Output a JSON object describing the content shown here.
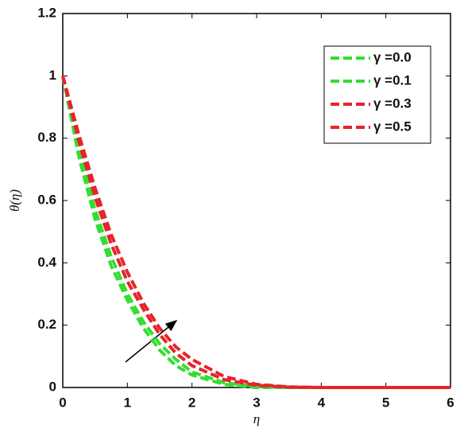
{
  "chart_data": {
    "type": "line",
    "xlabel": "η",
    "ylabel": "θ(η)",
    "x": [
      0,
      0.25,
      0.5,
      0.75,
      1,
      1.25,
      1.5,
      1.75,
      2,
      2.5,
      3,
      3.5,
      4,
      5,
      6
    ],
    "series": [
      {
        "name": "γ =0.0",
        "color": "#33dd33",
        "values": [
          1,
          0.74,
          0.54,
          0.39,
          0.28,
          0.19,
          0.12,
          0.07,
          0.04,
          0.01,
          0,
          0,
          0,
          0,
          0
        ]
      },
      {
        "name": "γ =0.1",
        "color": "#33dd33",
        "values": [
          1,
          0.76,
          0.57,
          0.42,
          0.3,
          0.21,
          0.14,
          0.09,
          0.05,
          0.015,
          0.003,
          0,
          0,
          0,
          0
        ]
      },
      {
        "name": "γ =0.3",
        "color": "#e8222a",
        "values": [
          1,
          0.79,
          0.61,
          0.46,
          0.34,
          0.25,
          0.17,
          0.11,
          0.07,
          0.025,
          0.007,
          0.001,
          0,
          0,
          0
        ]
      },
      {
        "name": "γ =0.5",
        "color": "#e8222a",
        "values": [
          1,
          0.81,
          0.64,
          0.49,
          0.37,
          0.27,
          0.19,
          0.13,
          0.09,
          0.035,
          0.01,
          0.002,
          0,
          0,
          0
        ]
      }
    ],
    "xlim": [
      0,
      6
    ],
    "xticks": [
      0,
      1,
      2,
      3,
      4,
      5,
      6
    ],
    "ylim": [
      0,
      1.2
    ],
    "yticks": [
      0,
      0.2,
      0.4,
      0.6,
      0.8,
      1,
      1.2
    ],
    "legend": "upper right"
  }
}
